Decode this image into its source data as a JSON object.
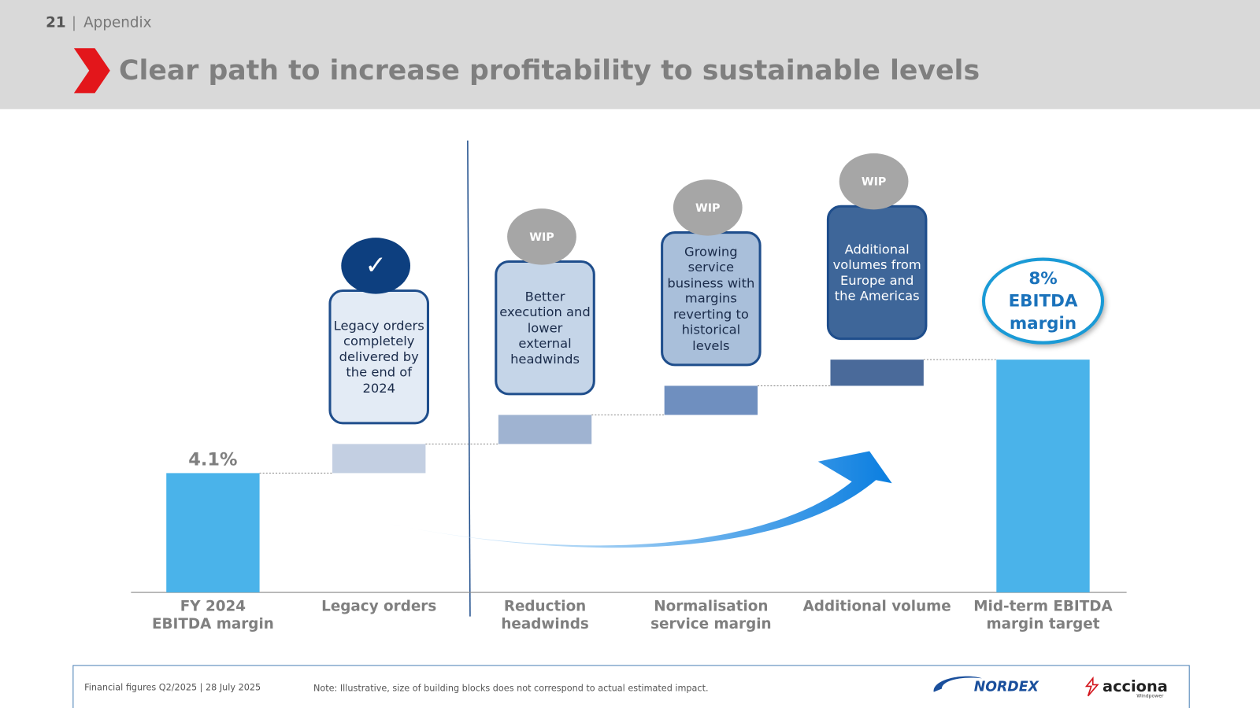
{
  "header": {
    "page_number": "21",
    "section": "Appendix",
    "title": "Clear path to increase profitability to sustainable levels"
  },
  "chart_data": {
    "type": "waterfall",
    "categories": [
      "FY 2024\nEBITDA margin",
      "Legacy orders",
      "Reduction\nheadwinds",
      "Normalisation\nservice margin",
      "Additional volume",
      "Mid-term EBITDA\nmargin target"
    ],
    "values": [
      4.1,
      1.0,
      1.0,
      1.0,
      0.9,
      8
    ],
    "value_labels": [
      "4.1%",
      null,
      null,
      null,
      null,
      "8%"
    ],
    "target_caption": "EBITDA margin",
    "colors": [
      "#4ab3ea",
      "#c3cfe2",
      "#9fb3d1",
      "#6f8fbf",
      "#4a6a9a",
      "#4ab3ea"
    ],
    "annotations": [
      null,
      {
        "text": "Legacy orders completely delivered by the end of 2024",
        "badge": "✓"
      },
      {
        "text": "Better execution and lower external headwinds",
        "badge": "WIP"
      },
      {
        "text": "Growing service business with margins reverting to historical levels",
        "badge": "WIP"
      },
      {
        "text": "Additional volumes from Europe and the Americas",
        "badge": "WIP"
      },
      null
    ]
  },
  "footer": {
    "source": "Financial figures Q2/2025 | 28 July 2025",
    "note": "Note: Illustrative, size of building blocks does not correspond to actual estimated impact.",
    "logo_1": "NORDEX",
    "logo_2": "acciona",
    "logo_2_sub": "Windpower"
  }
}
